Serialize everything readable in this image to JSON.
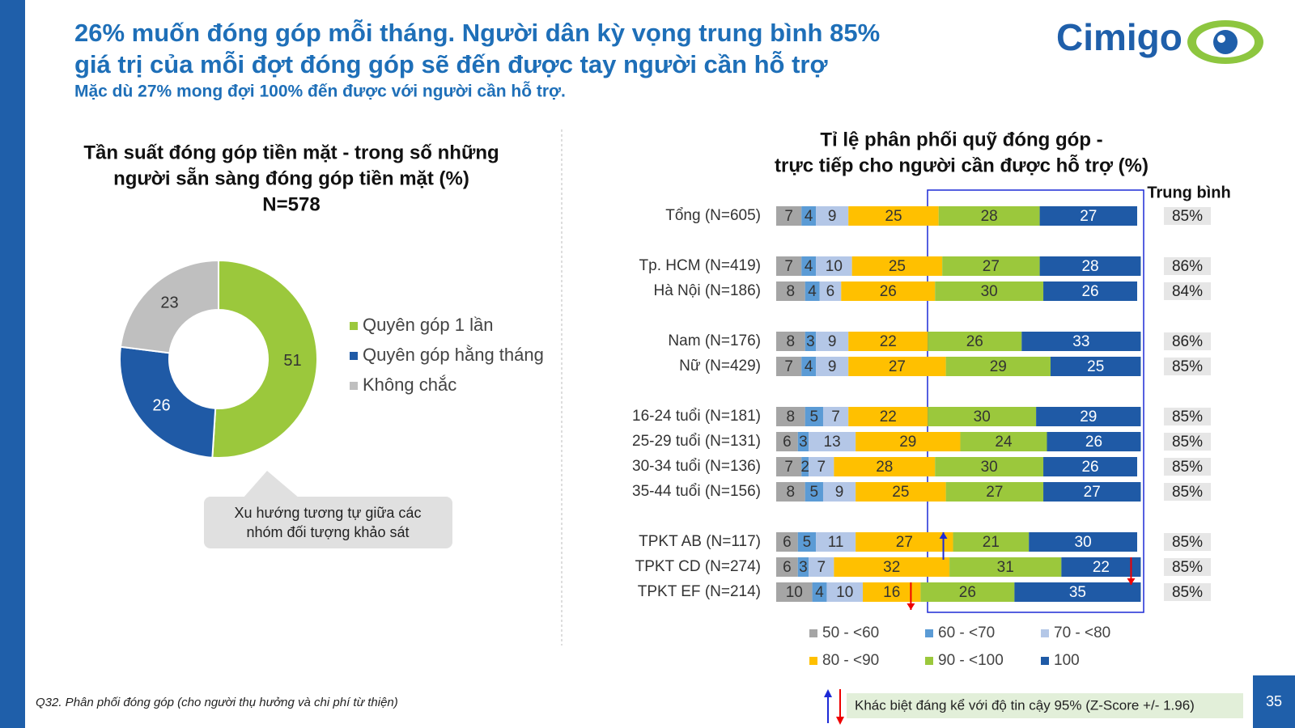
{
  "header": {
    "title": [
      "26% muốn đóng góp mỗi tháng. Người dân kỳ vọng trung bình 85%",
      "giá trị của mỗi đợt đóng góp sẽ đến được tay người cần hỗ trợ"
    ],
    "subtitle": "Mặc dù 27% mong đợi 100% đến được với người cần hỗ trợ.",
    "logo": "Cimigo"
  },
  "chart_data": [
    {
      "type": "pie",
      "title": [
        "Tần suất đóng góp tiền mặt - trong số những",
        "người sẵn sàng đóng góp tiền mặt (%)",
        "N=578"
      ],
      "categories": [
        "Quyên góp 1 lần",
        "Quyên góp hằng tháng",
        "Không chắc"
      ],
      "values": [
        51,
        26,
        23
      ],
      "colors": [
        "#9bc83c",
        "#1f5aa6",
        "#bfbfbf"
      ],
      "donut": true
    },
    {
      "type": "bar",
      "orientation": "horizontal",
      "stacked": true,
      "title": [
        "Tỉ lệ phân phối quỹ đóng góp -",
        "trực tiếp cho người cần được hỗ trợ (%)"
      ],
      "categories": [
        "Tổng (N=605)",
        null,
        "Tp. HCM (N=419)",
        "Hà Nội (N=186)",
        null,
        "Nam (N=176)",
        "Nữ (N=429)",
        null,
        "16-24 tuổi (N=181)",
        "25-29 tuổi (N=131)",
        "30-34 tuổi (N=136)",
        "35-44 tuổi (N=156)",
        null,
        "TPKT AB (N=117)",
        "TPKT CD (N=274)",
        "TPKT EF (N=214)"
      ],
      "xlim": [
        0,
        100
      ],
      "series": [
        {
          "name": "50 - <60",
          "color": "#a5a5a5",
          "values": [
            7,
            null,
            7,
            8,
            null,
            8,
            7,
            null,
            8,
            6,
            7,
            8,
            null,
            6,
            6,
            10
          ]
        },
        {
          "name": "60 - <70",
          "color": "#5b9bd5",
          "values": [
            4,
            null,
            4,
            4,
            null,
            3,
            4,
            null,
            5,
            3,
            2,
            5,
            null,
            5,
            3,
            4
          ]
        },
        {
          "name": "70 - <80",
          "color": "#b4c7e7",
          "values": [
            9,
            null,
            10,
            6,
            null,
            9,
            9,
            null,
            7,
            13,
            7,
            9,
            null,
            11,
            7,
            10
          ]
        },
        {
          "name": "80 - <90",
          "color": "#ffc000",
          "values": [
            25,
            null,
            25,
            26,
            null,
            22,
            27,
            null,
            22,
            29,
            28,
            25,
            null,
            27,
            32,
            16
          ]
        },
        {
          "name": "90 - <100",
          "color": "#9bc83c",
          "values": [
            28,
            null,
            27,
            30,
            null,
            26,
            29,
            null,
            30,
            24,
            30,
            27,
            null,
            21,
            31,
            26
          ]
        },
        {
          "name": "100",
          "color": "#1f5aa6",
          "values": [
            27,
            null,
            28,
            26,
            null,
            33,
            25,
            null,
            29,
            26,
            26,
            27,
            null,
            30,
            22,
            35
          ]
        }
      ],
      "average": {
        "title": "Trung bình",
        "values": [
          85,
          null,
          86,
          84,
          null,
          86,
          85,
          null,
          85,
          85,
          85,
          85,
          null,
          85,
          85,
          85
        ],
        "value_labels": [
          "85%",
          null,
          "86%",
          "84%",
          null,
          "86%",
          "85%",
          null,
          "85%",
          "85%",
          "85%",
          "85%",
          null,
          "85%",
          "85%",
          "85%"
        ]
      },
      "significance": {
        "note": "Khác biệt đáng kể với độ tin cậy 95% (Z-Score +/- 1.96)",
        "marks": [
          {
            "category": "TPKT AB (N=117)",
            "series": "80 - <90",
            "direction": "up"
          },
          {
            "category": "TPKT CD (N=274)",
            "series": "100",
            "direction": "down"
          },
          {
            "category": "TPKT EF (N=214)",
            "series": "80 - <90",
            "direction": "down"
          }
        ]
      }
    }
  ],
  "callout": [
    "Xu hướng tương tự giữa các",
    "nhóm đối tượng khảo sát"
  ],
  "footnote": "Q32. Phân phối đóng góp (cho người thụ hưởng và chi phí từ thiện)",
  "page_number": "35"
}
